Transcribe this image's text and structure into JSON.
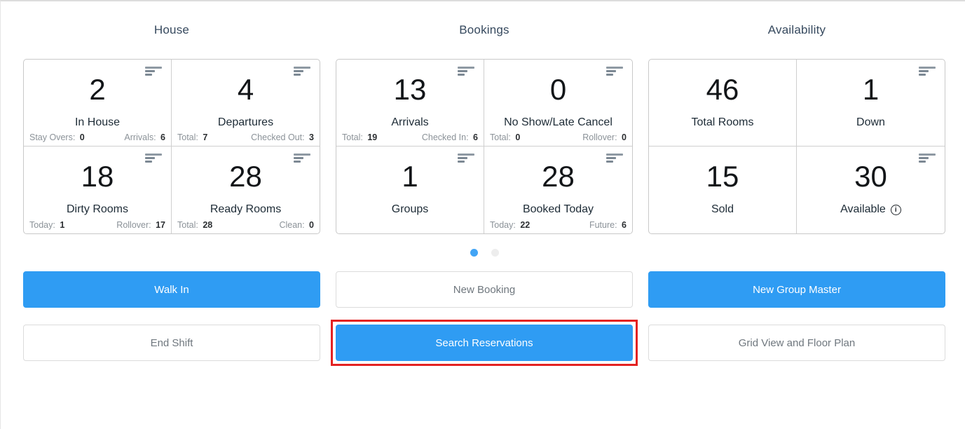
{
  "colors": {
    "accent_blue": "#2f9cf3",
    "annotation_red": "#e32222",
    "active_dot": "#42a4f5",
    "inactive_dot": "#ededed"
  },
  "sections": [
    {
      "title": "House",
      "cards": [
        {
          "value": "2",
          "label": "In House",
          "menu_icon": true,
          "info_icon": false,
          "stats": [
            {
              "label": "Stay Overs:",
              "value": "0"
            },
            {
              "label": "Arrivals:",
              "value": "6"
            }
          ]
        },
        {
          "value": "4",
          "label": "Departures",
          "menu_icon": true,
          "info_icon": false,
          "stats": [
            {
              "label": "Total:",
              "value": "7"
            },
            {
              "label": "Checked Out:",
              "value": "3"
            }
          ]
        },
        {
          "value": "18",
          "label": "Dirty Rooms",
          "menu_icon": true,
          "info_icon": false,
          "stats": [
            {
              "label": "Today:",
              "value": "1"
            },
            {
              "label": "Rollover:",
              "value": "17"
            }
          ]
        },
        {
          "value": "28",
          "label": "Ready Rooms",
          "menu_icon": true,
          "info_icon": false,
          "stats": [
            {
              "label": "Total:",
              "value": "28"
            },
            {
              "label": "Clean:",
              "value": "0"
            }
          ]
        }
      ],
      "dots": null,
      "buttons": [
        {
          "label": "Walk In",
          "style": "primary",
          "annotated": false
        },
        {
          "label": "End Shift",
          "style": "secondary",
          "annotated": false
        }
      ]
    },
    {
      "title": "Bookings",
      "cards": [
        {
          "value": "13",
          "label": "Arrivals",
          "menu_icon": true,
          "info_icon": false,
          "stats": [
            {
              "label": "Total:",
              "value": "19"
            },
            {
              "label": "Checked In:",
              "value": "6"
            }
          ]
        },
        {
          "value": "0",
          "label": "No Show/Late Cancel",
          "menu_icon": true,
          "info_icon": false,
          "stats": [
            {
              "label": "Total:",
              "value": "0"
            },
            {
              "label": "Rollover:",
              "value": "0"
            }
          ]
        },
        {
          "value": "1",
          "label": "Groups",
          "menu_icon": true,
          "info_icon": false,
          "stats": []
        },
        {
          "value": "28",
          "label": "Booked Today",
          "menu_icon": true,
          "info_icon": false,
          "stats": [
            {
              "label": "Today:",
              "value": "22"
            },
            {
              "label": "Future:",
              "value": "6"
            }
          ]
        }
      ],
      "dots": {
        "count": 2,
        "active_index": 0
      },
      "buttons": [
        {
          "label": "New Booking",
          "style": "secondary",
          "annotated": false
        },
        {
          "label": "Search Reservations",
          "style": "primary",
          "annotated": true
        }
      ]
    },
    {
      "title": "Availability",
      "cards": [
        {
          "value": "46",
          "label": "Total Rooms",
          "menu_icon": false,
          "info_icon": false,
          "stats": []
        },
        {
          "value": "1",
          "label": "Down",
          "menu_icon": true,
          "info_icon": false,
          "stats": []
        },
        {
          "value": "15",
          "label": "Sold",
          "menu_icon": false,
          "info_icon": false,
          "stats": []
        },
        {
          "value": "30",
          "label": "Available",
          "menu_icon": true,
          "info_icon": true,
          "stats": []
        }
      ],
      "dots": null,
      "buttons": [
        {
          "label": "New Group Master",
          "style": "primary",
          "annotated": false
        },
        {
          "label": "Grid View and Floor Plan",
          "style": "secondary",
          "annotated": false
        }
      ]
    }
  ],
  "info_icon_glyph": "i"
}
